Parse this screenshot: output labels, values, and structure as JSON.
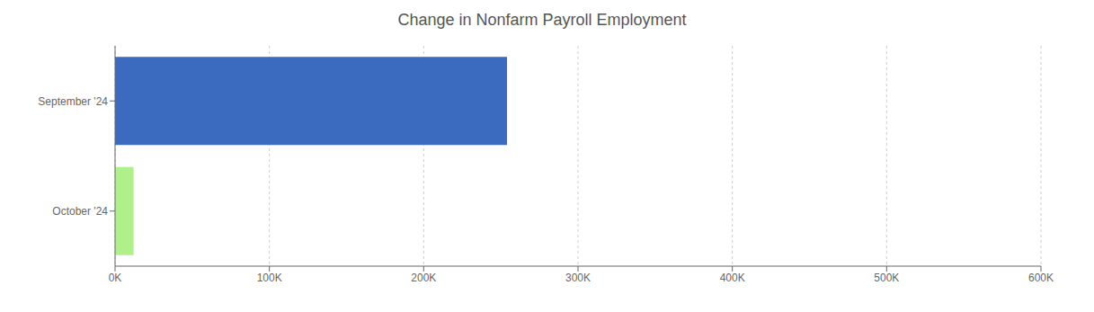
{
  "chart_data": {
    "type": "bar",
    "title": "Change in Nonfarm Payroll Employment",
    "orientation": "horizontal",
    "categories": [
      "September '24",
      "October '24"
    ],
    "values": [
      254000,
      12000
    ],
    "colors": [
      "#3a6bbf",
      "#b0f08a"
    ],
    "xlim": [
      0,
      600000
    ],
    "xticks": [
      {
        "value": 0,
        "label": "0K"
      },
      {
        "value": 100000,
        "label": "100K"
      },
      {
        "value": 200000,
        "label": "200K"
      },
      {
        "value": 300000,
        "label": "300K"
      },
      {
        "value": 400000,
        "label": "400K"
      },
      {
        "value": 500000,
        "label": "500K"
      },
      {
        "value": 600000,
        "label": "600K"
      }
    ],
    "grid": true
  }
}
